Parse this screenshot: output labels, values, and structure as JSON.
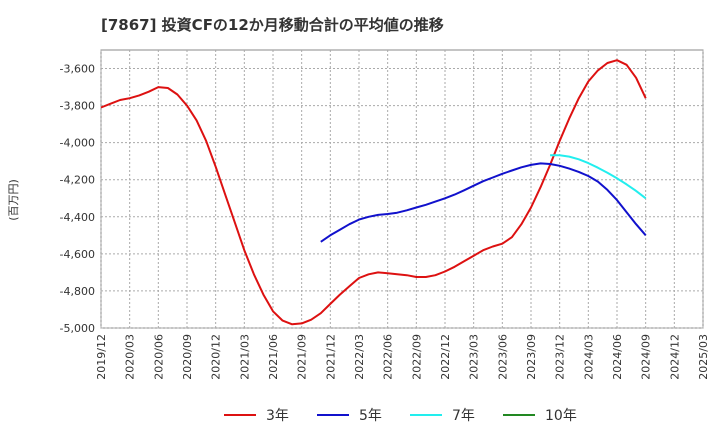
{
  "chart_data": {
    "type": "line",
    "title": "[7867]  投資CFの12か月移動合計の平均値の推移",
    "ylabel": "(百万円)",
    "xlabel": "",
    "ylim": [
      -5000,
      -3500
    ],
    "yticks": [
      -5000,
      -4800,
      -4600,
      -4400,
      -4200,
      -4000,
      -3800,
      -3600
    ],
    "ytick_labels": [
      "-5,000",
      "-4,800",
      "-4,600",
      "-4,400",
      "-4,200",
      "-4,000",
      "-3,800",
      "-3,600"
    ],
    "xlim": [
      "2019/12",
      "2025/03"
    ],
    "xtick_labels": [
      "2019/12",
      "2020/03",
      "2020/06",
      "2020/09",
      "2020/12",
      "2021/03",
      "2021/06",
      "2021/09",
      "2021/12",
      "2022/03",
      "2022/06",
      "2022/09",
      "2022/12",
      "2023/03",
      "2023/06",
      "2023/09",
      "2023/12",
      "2024/03",
      "2024/06",
      "2024/09",
      "2024/12",
      "2025/03"
    ],
    "grid": true,
    "legend": "bottom",
    "series": [
      {
        "name": "3年",
        "color": "#dd1111",
        "points": [
          [
            "2019/12",
            -3810
          ],
          [
            "2020/01",
            -3790
          ],
          [
            "2020/02",
            -3770
          ],
          [
            "2020/03",
            -3760
          ],
          [
            "2020/04",
            -3745
          ],
          [
            "2020/05",
            -3725
          ],
          [
            "2020/06",
            -3700
          ],
          [
            "2020/07",
            -3705
          ],
          [
            "2020/08",
            -3740
          ],
          [
            "2020/09",
            -3800
          ],
          [
            "2020/10",
            -3880
          ],
          [
            "2020/11",
            -3990
          ],
          [
            "2020/12",
            -4130
          ],
          [
            "2021/01",
            -4280
          ],
          [
            "2021/02",
            -4430
          ],
          [
            "2021/03",
            -4580
          ],
          [
            "2021/04",
            -4710
          ],
          [
            "2021/05",
            -4820
          ],
          [
            "2021/06",
            -4910
          ],
          [
            "2021/07",
            -4960
          ],
          [
            "2021/08",
            -4980
          ],
          [
            "2021/09",
            -4975
          ],
          [
            "2021/10",
            -4955
          ],
          [
            "2021/11",
            -4920
          ],
          [
            "2021/12",
            -4870
          ],
          [
            "2022/01",
            -4820
          ],
          [
            "2022/02",
            -4775
          ],
          [
            "2022/03",
            -4730
          ],
          [
            "2022/04",
            -4710
          ],
          [
            "2022/05",
            -4700
          ],
          [
            "2022/06",
            -4705
          ],
          [
            "2022/07",
            -4710
          ],
          [
            "2022/08",
            -4715
          ],
          [
            "2022/09",
            -4725
          ],
          [
            "2022/10",
            -4725
          ],
          [
            "2022/11",
            -4715
          ],
          [
            "2022/12",
            -4695
          ],
          [
            "2023/01",
            -4670
          ],
          [
            "2023/02",
            -4640
          ],
          [
            "2023/03",
            -4610
          ],
          [
            "2023/04",
            -4580
          ],
          [
            "2023/05",
            -4560
          ],
          [
            "2023/06",
            -4545
          ],
          [
            "2023/07",
            -4510
          ],
          [
            "2023/08",
            -4440
          ],
          [
            "2023/09",
            -4350
          ],
          [
            "2023/10",
            -4240
          ],
          [
            "2023/11",
            -4120
          ],
          [
            "2023/12",
            -3990
          ],
          [
            "2024/01",
            -3870
          ],
          [
            "2024/02",
            -3760
          ],
          [
            "2024/03",
            -3670
          ],
          [
            "2024/04",
            -3610
          ],
          [
            "2024/05",
            -3570
          ],
          [
            "2024/06",
            -3555
          ],
          [
            "2024/07",
            -3580
          ],
          [
            "2024/08",
            -3650
          ],
          [
            "2024/09",
            -3760
          ]
        ]
      },
      {
        "name": "5年",
        "color": "#1111cc",
        "points": [
          [
            "2021/11",
            -4535
          ],
          [
            "2021/12",
            -4500
          ],
          [
            "2022/01",
            -4470
          ],
          [
            "2022/02",
            -4440
          ],
          [
            "2022/03",
            -4415
          ],
          [
            "2022/04",
            -4400
          ],
          [
            "2022/05",
            -4390
          ],
          [
            "2022/06",
            -4385
          ],
          [
            "2022/07",
            -4378
          ],
          [
            "2022/08",
            -4365
          ],
          [
            "2022/09",
            -4350
          ],
          [
            "2022/10",
            -4335
          ],
          [
            "2022/11",
            -4318
          ],
          [
            "2022/12",
            -4300
          ],
          [
            "2023/01",
            -4280
          ],
          [
            "2023/02",
            -4257
          ],
          [
            "2023/03",
            -4232
          ],
          [
            "2023/04",
            -4208
          ],
          [
            "2023/05",
            -4188
          ],
          [
            "2023/06",
            -4168
          ],
          [
            "2023/07",
            -4150
          ],
          [
            "2023/08",
            -4133
          ],
          [
            "2023/09",
            -4120
          ],
          [
            "2023/10",
            -4112
          ],
          [
            "2023/11",
            -4115
          ],
          [
            "2023/12",
            -4125
          ],
          [
            "2024/01",
            -4140
          ],
          [
            "2024/02",
            -4158
          ],
          [
            "2024/03",
            -4180
          ],
          [
            "2024/04",
            -4210
          ],
          [
            "2024/05",
            -4255
          ],
          [
            "2024/06",
            -4310
          ],
          [
            "2024/07",
            -4375
          ],
          [
            "2024/08",
            -4440
          ],
          [
            "2024/09",
            -4500
          ]
        ]
      },
      {
        "name": "7年",
        "color": "#22eeee",
        "points": [
          [
            "2023/11",
            -4068
          ],
          [
            "2023/12",
            -4068
          ],
          [
            "2024/01",
            -4075
          ],
          [
            "2024/02",
            -4090
          ],
          [
            "2024/03",
            -4110
          ],
          [
            "2024/04",
            -4135
          ],
          [
            "2024/05",
            -4162
          ],
          [
            "2024/06",
            -4192
          ],
          [
            "2024/07",
            -4225
          ],
          [
            "2024/08",
            -4260
          ],
          [
            "2024/09",
            -4300
          ]
        ]
      },
      {
        "name": "10年",
        "color": "#228822",
        "points": []
      }
    ]
  }
}
